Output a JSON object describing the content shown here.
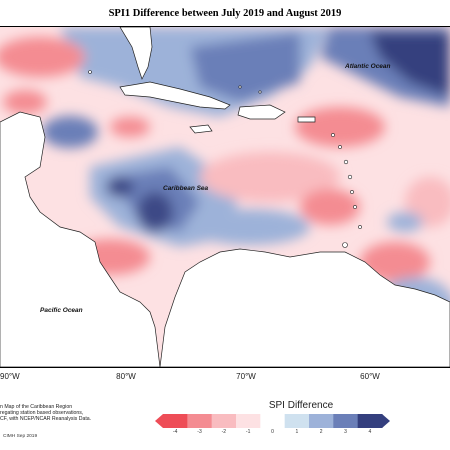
{
  "title": "SPI1 Difference between July 2019 and August 2019",
  "map_labels": {
    "atlantic": "Atlantic Ocean",
    "caribbean": "Caribbean Sea",
    "pacific": "Pacific Ocean"
  },
  "lon_labels": [
    "90°W",
    "80°W",
    "70°W",
    "60°W"
  ],
  "credits": {
    "line1": "n Map of the Caribbean Region",
    "line2": "regating station based observations,",
    "line3": "CF, with NCEP/NCAR Reanalysis Data."
  },
  "footer": "CIMH Sep 2019",
  "legend": {
    "title": "SPI Difference",
    "ticks": [
      "-4",
      "-3",
      "-2",
      "-1",
      "0",
      "1",
      "2",
      "3",
      "4"
    ],
    "colors": [
      "#ee4d57",
      "#f48c92",
      "#f9bcc0",
      "#fde1e3",
      "#ffffff",
      "#cfe1ef",
      "#9db2d9",
      "#6b7fb8",
      "#343f7e"
    ]
  },
  "colors": {
    "pos_strong": "#3e4a86",
    "pos_mid": "#6b7fb8",
    "pos_light": "#9db2d9",
    "neg_strong": "#ee4d57",
    "neg_mid": "#f48c92",
    "neg_light": "#f9bcc0",
    "land": "#ffffff"
  }
}
